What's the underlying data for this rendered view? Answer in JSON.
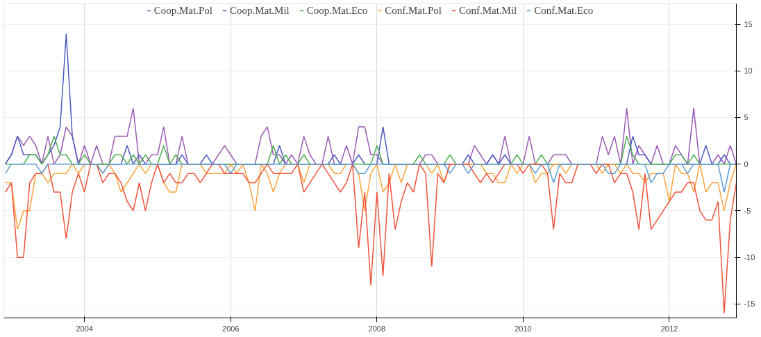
{
  "chart_data": {
    "type": "line",
    "x": [
      "2002-12",
      "2003-01",
      "2003-02",
      "2003-03",
      "2003-04",
      "2003-05",
      "2003-06",
      "2003-07",
      "2003-08",
      "2003-09",
      "2003-10",
      "2003-11",
      "2003-12",
      "2004-01",
      "2004-02",
      "2004-03",
      "2004-04",
      "2004-05",
      "2004-06",
      "2004-07",
      "2004-08",
      "2004-09",
      "2004-10",
      "2004-11",
      "2004-12",
      "2005-01",
      "2005-02",
      "2005-03",
      "2005-04",
      "2005-05",
      "2005-06",
      "2005-07",
      "2005-08",
      "2005-09",
      "2005-10",
      "2005-11",
      "2005-12",
      "2006-01",
      "2006-02",
      "2006-03",
      "2006-04",
      "2006-05",
      "2006-06",
      "2006-07",
      "2006-08",
      "2006-09",
      "2006-10",
      "2006-11",
      "2006-12",
      "2007-01",
      "2007-02",
      "2007-03",
      "2007-04",
      "2007-05",
      "2007-06",
      "2007-07",
      "2007-08",
      "2007-09",
      "2007-10",
      "2007-11",
      "2007-12",
      "2008-01",
      "2008-02",
      "2008-03",
      "2008-04",
      "2008-05",
      "2008-06",
      "2008-07",
      "2008-08",
      "2008-09",
      "2008-10",
      "2008-11",
      "2008-12",
      "2009-01",
      "2009-02",
      "2009-03",
      "2009-04",
      "2009-05",
      "2009-06",
      "2009-07",
      "2009-08",
      "2009-09",
      "2009-10",
      "2009-11",
      "2009-12",
      "2010-01",
      "2010-02",
      "2010-03",
      "2010-04",
      "2010-05",
      "2010-06",
      "2010-07",
      "2010-08",
      "2010-09",
      "2010-10",
      "2010-11",
      "2010-12",
      "2011-01",
      "2011-02",
      "2011-03",
      "2011-04",
      "2011-05",
      "2011-06",
      "2011-07",
      "2011-08",
      "2011-09",
      "2011-10",
      "2011-11",
      "2011-12",
      "2012-01",
      "2012-02",
      "2012-03",
      "2012-04",
      "2012-05",
      "2012-06",
      "2012-07",
      "2012-08",
      "2012-09",
      "2012-10",
      "2012-11",
      "2012-12"
    ],
    "series": [
      {
        "name": "Coop.Mat.Pol",
        "color": "#9b59b6",
        "values": [
          0,
          1,
          3,
          2,
          3,
          2,
          0,
          3,
          0,
          1,
          4,
          3,
          0,
          2,
          0,
          2,
          0,
          0,
          3,
          3,
          3,
          6,
          0,
          0,
          1,
          1,
          4,
          0,
          0,
          3,
          0,
          0,
          0,
          0,
          0,
          1,
          2,
          1,
          0,
          0,
          0,
          0,
          3,
          4,
          1,
          1,
          0,
          1,
          0,
          3,
          1,
          0,
          0,
          3,
          0,
          0,
          2,
          0,
          4,
          4,
          1,
          1,
          0,
          0,
          0,
          0,
          0,
          0,
          0,
          1,
          1,
          0,
          0,
          0,
          0,
          0,
          0,
          2,
          1,
          0,
          1,
          0,
          3,
          0,
          0,
          0,
          3,
          0,
          0,
          0,
          1,
          1,
          1,
          0,
          0,
          0,
          0,
          0,
          3,
          1,
          3,
          0,
          6,
          0,
          2,
          1,
          0,
          2,
          0,
          0,
          2,
          1,
          0,
          6,
          0,
          0,
          0,
          1,
          0,
          2,
          0
        ]
      },
      {
        "name": "Coop.Mat.Mil",
        "color": "#4a5bbf",
        "values": [
          0,
          1,
          3,
          1,
          1,
          1,
          0,
          1,
          2,
          4,
          14,
          3,
          0,
          0,
          0,
          0,
          0,
          0,
          0,
          0,
          2,
          0,
          1,
          0,
          0,
          0,
          0,
          0,
          0,
          1,
          0,
          0,
          0,
          1,
          0,
          0,
          0,
          0,
          0,
          0,
          0,
          0,
          0,
          0,
          0,
          2,
          0,
          0,
          0,
          0,
          0,
          0,
          0,
          0,
          1,
          0,
          0,
          0,
          1,
          0,
          0,
          0,
          4,
          0,
          0,
          0,
          0,
          0,
          0,
          0,
          0,
          0,
          0,
          0,
          0,
          0,
          1,
          0,
          0,
          0,
          1,
          0,
          1,
          0,
          0,
          0,
          0,
          0,
          0,
          0,
          0,
          0,
          0,
          0,
          0,
          0,
          0,
          0,
          0,
          0,
          0,
          0,
          0,
          3,
          1,
          1,
          0,
          0,
          0,
          0,
          0,
          0,
          0,
          0,
          0,
          2,
          0,
          0,
          1,
          0,
          0
        ]
      },
      {
        "name": "Coop.Mat.Eco",
        "color": "#4caf50",
        "values": [
          0,
          0,
          0,
          0,
          1,
          1,
          0,
          1,
          3,
          1,
          1,
          0,
          0,
          1,
          0,
          0,
          0,
          0,
          1,
          1,
          0,
          1,
          0,
          1,
          0,
          0,
          2,
          0,
          1,
          0,
          0,
          0,
          0,
          0,
          0,
          0,
          0,
          0,
          0,
          0,
          0,
          0,
          0,
          0,
          2,
          0,
          1,
          0,
          0,
          1,
          0,
          0,
          0,
          0,
          0,
          0,
          0,
          0,
          0,
          0,
          0,
          2,
          0,
          0,
          0,
          0,
          0,
          0,
          1,
          0,
          0,
          0,
          0,
          1,
          0,
          0,
          0,
          0,
          0,
          0,
          0,
          0,
          0,
          0,
          1,
          0,
          0,
          0,
          1,
          0,
          0,
          0,
          0,
          0,
          0,
          0,
          0,
          0,
          0,
          0,
          0,
          0,
          3,
          1,
          0,
          0,
          0,
          0,
          0,
          0,
          1,
          1,
          0,
          1,
          0,
          0,
          0,
          0,
          0,
          0,
          0
        ]
      },
      {
        "name": "Conf.Mat.Pol",
        "color": "#fba33c",
        "values": [
          -2,
          -2,
          -7,
          -5,
          -5,
          -1,
          -1,
          -2,
          -1,
          -1,
          -1,
          0,
          -1,
          0,
          0,
          0,
          -1,
          0,
          -1,
          -3,
          -2,
          -1,
          0,
          -1,
          0,
          0,
          -2,
          -3,
          -3,
          0,
          0,
          0,
          0,
          -1,
          -1,
          -1,
          -1,
          0,
          -1,
          0,
          -2,
          -5,
          0,
          -1,
          -3,
          -1,
          0,
          0,
          0,
          -2,
          0,
          0,
          0,
          0,
          -1,
          -1,
          0,
          0,
          -1,
          -5,
          -1,
          0,
          -3,
          -2,
          0,
          -2,
          0,
          0,
          0,
          0,
          -1,
          0,
          -2,
          0,
          0,
          0,
          0,
          0,
          0,
          -1,
          -1,
          -2,
          -2,
          0,
          -1,
          0,
          0,
          -2,
          -1,
          -1,
          0,
          0,
          -1,
          0,
          0,
          0,
          0,
          0,
          -1,
          0,
          0,
          -1,
          0,
          -1,
          -1,
          -2,
          -1,
          -1,
          -1,
          -4,
          0,
          -1,
          -1,
          -3,
          0,
          -3,
          -2,
          -2,
          -5,
          -2,
          0
        ]
      },
      {
        "name": "Conf.Mat.Mil",
        "color": "#f0523a",
        "values": [
          -3,
          -2,
          -10,
          -10,
          -2,
          -1,
          -1,
          0,
          -3,
          -3,
          -8,
          -3,
          -1,
          -3,
          0,
          0,
          -2,
          -1,
          -1,
          -2,
          -4,
          -5,
          -2,
          -5,
          -2,
          0,
          -2,
          -1,
          -2,
          -2,
          -1,
          -1,
          -2,
          -1,
          0,
          0,
          -1,
          -1,
          -1,
          -1,
          -2,
          -2,
          -1,
          0,
          -1,
          -1,
          -1,
          -1,
          0,
          -3,
          -2,
          -1,
          0,
          -1,
          -2,
          -3,
          -2,
          0,
          -9,
          -3,
          -13,
          -3,
          -12,
          -1,
          -7,
          -4,
          -2,
          -3,
          0,
          -1,
          -11,
          -1,
          -2,
          0,
          0,
          0,
          0,
          -1,
          -2,
          -1,
          -2,
          -1,
          0,
          0,
          0,
          -1,
          0,
          0,
          0,
          -1,
          -7,
          -1,
          -2,
          -2,
          0,
          0,
          0,
          -1,
          0,
          0,
          -2,
          -1,
          -1,
          -3,
          -7,
          -1,
          -7,
          -6,
          -5,
          -4,
          -3,
          -3,
          -2,
          -2,
          -5,
          -6,
          -6,
          -4,
          -16,
          -6,
          -2
        ]
      },
      {
        "name": "Conf.Mat.Eco",
        "color": "#5b9bd5",
        "values": [
          -1,
          0,
          0,
          0,
          0,
          0,
          -1,
          0,
          0,
          0,
          0,
          0,
          0,
          0,
          0,
          0,
          -1,
          0,
          0,
          0,
          0,
          0,
          0,
          0,
          0,
          0,
          0,
          0,
          0,
          0,
          0,
          0,
          0,
          0,
          0,
          0,
          0,
          -1,
          0,
          0,
          0,
          0,
          0,
          0,
          0,
          0,
          0,
          0,
          0,
          0,
          0,
          0,
          0,
          0,
          0,
          0,
          0,
          0,
          -1,
          -1,
          0,
          0,
          0,
          0,
          0,
          0,
          0,
          0,
          0,
          0,
          0,
          0,
          0,
          -1,
          0,
          0,
          -1,
          0,
          0,
          0,
          0,
          0,
          0,
          0,
          0,
          0,
          0,
          -1,
          0,
          0,
          -2,
          0,
          0,
          0,
          0,
          0,
          0,
          0,
          0,
          -1,
          -1,
          0,
          0,
          0,
          0,
          0,
          -2,
          -1,
          -1,
          0,
          0,
          0,
          -1,
          0,
          0,
          0,
          0,
          0,
          -3,
          0,
          0
        ]
      }
    ],
    "xlim": [
      "2002-11-24",
      "2012-12-01"
    ],
    "xticks": [
      "2004",
      "2006",
      "2008",
      "2010",
      "2012"
    ],
    "ylim": [
      -16.5,
      17.2
    ],
    "yticks": [
      -15,
      -10,
      -5,
      0,
      5,
      10,
      15
    ],
    "grid": true,
    "legend": "top",
    "marker": "none",
    "line_style": "solid"
  }
}
